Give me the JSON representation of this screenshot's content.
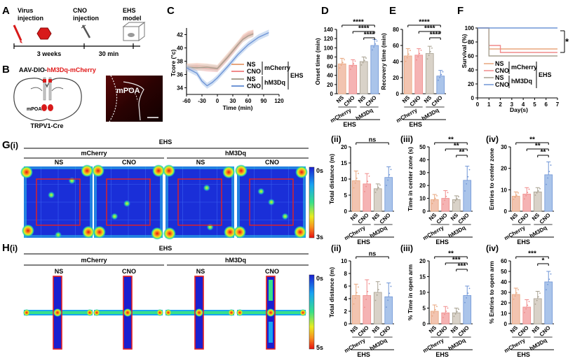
{
  "colors": {
    "ns_mcherry": "#f2c4b0",
    "cno_mcherry": "#f5b3b3",
    "ns_hm3dq": "#d9d2c8",
    "cno_hm3dq": "#aac4ea",
    "ns_mcherry_line": "#e8a57c",
    "cno_mcherry_line": "#f08a8a",
    "ns_hm3dq_line": "#a7a090",
    "cno_hm3dq_line": "#6f95d6",
    "red_text": "#e01818",
    "heat_bg": "#1a2fd8"
  },
  "panelA": {
    "label": "A",
    "step1": "Virus",
    "step1b": "injection",
    "step2": "CNO",
    "step2b": "injection",
    "step3": "EHS",
    "step3b": "model",
    "interval1": "3 weeks",
    "interval2": "30 min"
  },
  "panelB": {
    "label": "B",
    "title_prefix": "AAV-DIO-",
    "title_red": "hM3Dq-mCherry",
    "region": "mPOA",
    "region_small": "mPOA",
    "mouse": "TRPV1-Cre"
  },
  "legend": {
    "ns": "NS",
    "cno": "CNO",
    "mcherry": "mCherry",
    "hm3dq": "hM3Dq",
    "ehs": "EHS"
  },
  "group_labels": {
    "mcherry": "mCherry",
    "hm3dq": "hM3Dq",
    "ehs": "EHS",
    "ns": "NS",
    "cno": "CNO"
  },
  "heatmap": {
    "label_g": "G",
    "label_g_sub": "(i)",
    "label_h": "H",
    "label_h_sub": "(i)",
    "ehs": "EHS",
    "mcherry": "mCherry",
    "hm3dq": "hM3Dq",
    "ns": "NS",
    "cno": "CNO",
    "scale_g_top": "0s",
    "scale_g_bottom": "3s",
    "scale_h_top": "0s",
    "scale_h_bottom": "5s"
  },
  "sub_labels": {
    "ii": "(ii)",
    "iii": "(iii)",
    "iv": "(iv)"
  },
  "chart_data": [
    {
      "id": "C",
      "label": "C",
      "type": "line",
      "xlabel": "Time (min)",
      "ylabel": "Tcore (°c)",
      "xlim": [
        -60,
        120
      ],
      "ylim": [
        33,
        43
      ],
      "xticks": [
        -60,
        -30,
        0,
        30,
        60,
        90,
        120
      ],
      "yticks": [
        34,
        36,
        38,
        40,
        42
      ],
      "series": [
        {
          "name": "NS mCherry",
          "x": [
            -60,
            -40,
            -20,
            0,
            20,
            40,
            50,
            60,
            70
          ],
          "y": [
            37.2,
            37.3,
            37.2,
            37.0,
            38.8,
            40.6,
            41.6,
            42.1,
            42.3
          ]
        },
        {
          "name": "CNO mCherry",
          "x": [
            -60,
            -40,
            -20,
            0,
            20,
            40,
            50,
            60,
            70
          ],
          "y": [
            37.0,
            37.1,
            36.9,
            36.8,
            38.5,
            40.4,
            41.4,
            41.9,
            42.2
          ]
        },
        {
          "name": "NS hM3Dq",
          "x": [
            -60,
            -40,
            -20,
            0,
            20,
            40,
            50,
            60,
            70
          ],
          "y": [
            37.1,
            37.0,
            37.1,
            36.9,
            38.6,
            40.5,
            41.3,
            41.8,
            42.1
          ]
        },
        {
          "name": "CNO hM3Dq",
          "x": [
            -60,
            -40,
            -30,
            -20,
            -10,
            0,
            20,
            40,
            60,
            80,
            100
          ],
          "y": [
            37.0,
            36.2,
            35.0,
            34.3,
            34.8,
            35.5,
            37.2,
            39.0,
            40.5,
            41.6,
            42.3
          ]
        }
      ]
    },
    {
      "id": "D",
      "label": "D",
      "type": "bar",
      "ylabel": "Onset time (min)",
      "ylim": [
        0,
        140
      ],
      "yticks": [
        0,
        20,
        40,
        60,
        80,
        100,
        120,
        140
      ],
      "categories": [
        "NS",
        "CNO",
        "NS",
        "CNO"
      ],
      "groups": [
        "mCherry",
        "hM3Dq"
      ],
      "values": [
        65,
        62,
        70,
        105
      ],
      "errors": [
        12,
        12,
        10,
        13
      ],
      "sig": [
        "****",
        "****",
        "****"
      ],
      "group_caption": "EHS"
    },
    {
      "id": "E",
      "label": "E",
      "type": "bar",
      "ylabel": "Recovery time (min)",
      "ylim": [
        0,
        80
      ],
      "yticks": [
        0,
        20,
        40,
        60,
        80
      ],
      "categories": [
        "NS",
        "CNO",
        "NS",
        "CNO"
      ],
      "groups": [
        "mCherry",
        "hM3Dq"
      ],
      "values": [
        47,
        48,
        50,
        22
      ],
      "errors": [
        9,
        8,
        9,
        7
      ],
      "sig": [
        "****",
        "****",
        "****"
      ],
      "group_caption": "EHS"
    },
    {
      "id": "F",
      "label": "F",
      "type": "line",
      "xlabel": "Day(s)",
      "ylabel": "Survival (%)",
      "xlim": [
        0,
        7
      ],
      "ylim": [
        0,
        100
      ],
      "xticks": [
        0,
        1,
        2,
        3,
        4,
        5,
        6,
        7
      ],
      "yticks": [
        0,
        20,
        40,
        60,
        80,
        100
      ],
      "series": [
        {
          "name": "NS mCherry",
          "x": [
            0,
            1,
            1,
            7
          ],
          "y": [
            100,
            100,
            70,
            70
          ]
        },
        {
          "name": "CNO mCherry",
          "x": [
            0,
            1,
            1,
            2,
            2,
            7
          ],
          "y": [
            100,
            100,
            75,
            75,
            65,
            65
          ]
        },
        {
          "name": "NS hM3Dq",
          "x": [
            0,
            1,
            1,
            7
          ],
          "y": [
            100,
            100,
            60,
            60
          ]
        },
        {
          "name": "CNO hM3Dq",
          "x": [
            0,
            7
          ],
          "y": [
            100,
            100
          ]
        }
      ],
      "sig": [
        "*"
      ]
    },
    {
      "id": "Gii",
      "label": "(ii)",
      "type": "bar",
      "ylabel": "Total distance (m)",
      "ylim": [
        0,
        20
      ],
      "yticks": [
        0,
        5,
        10,
        15,
        20
      ],
      "categories": [
        "NS",
        "CNO",
        "NS",
        "CNO"
      ],
      "groups": [
        "mCherry",
        "hM3Dq"
      ],
      "values": [
        9.5,
        8.5,
        7.0,
        10.5
      ],
      "errors": [
        3.0,
        3.2,
        1.5,
        3.3
      ],
      "sig": [
        "ns"
      ],
      "group_caption": "EHS"
    },
    {
      "id": "Giii",
      "label": "(iii)",
      "type": "bar",
      "ylabel": "Time in center zone (s)",
      "ylim": [
        0,
        50
      ],
      "yticks": [
        0,
        10,
        20,
        30,
        40,
        50
      ],
      "categories": [
        "NS",
        "CNO",
        "NS",
        "CNO"
      ],
      "groups": [
        "mCherry",
        "hM3Dq"
      ],
      "values": [
        9,
        10,
        9,
        24
      ],
      "errors": [
        4,
        6,
        3,
        11
      ],
      "sig": [
        "**",
        "**",
        "**"
      ],
      "group_caption": "EHS"
    },
    {
      "id": "Giv",
      "label": "(iv)",
      "type": "bar",
      "ylabel": "Entries to center zone",
      "ylim": [
        0,
        30
      ],
      "yticks": [
        0,
        10,
        20,
        30
      ],
      "categories": [
        "NS",
        "CNO",
        "NS",
        "CNO"
      ],
      "groups": [
        "mCherry",
        "hM3Dq"
      ],
      "values": [
        7,
        8,
        9,
        17
      ],
      "errors": [
        2,
        3,
        2,
        6
      ],
      "sig": [
        "**",
        "**",
        "**"
      ],
      "group_caption": "EHS"
    },
    {
      "id": "Hii",
      "label": "(ii)",
      "type": "bar",
      "ylabel": "Total distance (m)",
      "ylim": [
        0,
        10
      ],
      "yticks": [
        0,
        2,
        4,
        6,
        8,
        10
      ],
      "categories": [
        "NS",
        "CNO",
        "NS",
        "CNO"
      ],
      "groups": [
        "mCherry",
        "hM3Dq"
      ],
      "values": [
        4.5,
        4.5,
        5.0,
        4.3
      ],
      "errors": [
        1.8,
        2.5,
        1.7,
        2.2
      ],
      "sig": [
        "ns"
      ],
      "group_caption": "EHS"
    },
    {
      "id": "Hiii",
      "label": "(iii)",
      "type": "bar",
      "ylabel": "% Time in open arm",
      "ylim": [
        0,
        20
      ],
      "yticks": [
        0,
        5,
        10,
        15,
        20
      ],
      "categories": [
        "NS",
        "CNO",
        "NS",
        "CNO"
      ],
      "groups": [
        "mCherry",
        "hM3Dq"
      ],
      "values": [
        4,
        3.5,
        3.5,
        9
      ],
      "errors": [
        2,
        2,
        1.5,
        3
      ],
      "sig": [
        "**",
        "***",
        "***"
      ],
      "group_caption": "EHS"
    },
    {
      "id": "Hiv",
      "label": "(iv)",
      "type": "bar",
      "ylabel": "% Entries to open arm",
      "ylim": [
        0,
        60
      ],
      "yticks": [
        0,
        10,
        20,
        30,
        40,
        50,
        60
      ],
      "categories": [
        "NS",
        "CNO",
        "NS",
        "CNO"
      ],
      "groups": [
        "mCherry",
        "hM3Dq"
      ],
      "values": [
        28,
        16,
        24,
        40
      ],
      "errors": [
        6,
        7,
        7,
        10
      ],
      "sig": [
        "***",
        "*"
      ],
      "group_caption": "EHS"
    }
  ]
}
